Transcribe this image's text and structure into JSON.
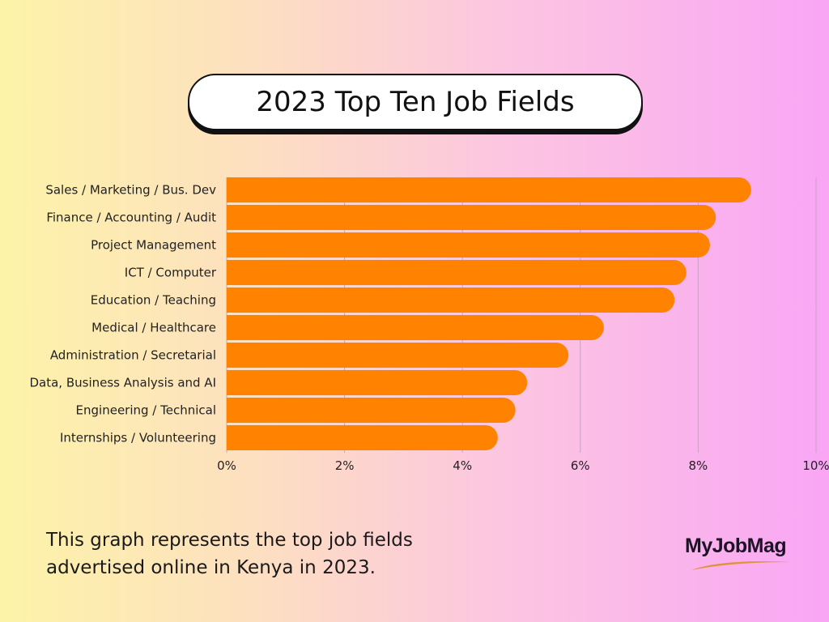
{
  "chart_data": {
    "type": "bar",
    "orientation": "horizontal",
    "title": "2023 Top Ten Job Fields",
    "categories": [
      "Sales / Marketing / Bus. Dev",
      "Finance / Accounting / Audit",
      "Project Management",
      "ICT / Computer",
      "Education / Teaching",
      "Medical / Healthcare",
      "Administration / Secretarial",
      "Data, Business Analysis and AI",
      "Engineering / Technical",
      "Internships / Volunteering"
    ],
    "values": [
      8.9,
      8.3,
      8.2,
      7.8,
      7.6,
      6.4,
      5.8,
      5.1,
      4.9,
      4.6
    ],
    "xlim": [
      0,
      10
    ],
    "xticks": [
      "0%",
      "2%",
      "4%",
      "6%",
      "8%",
      "10%"
    ],
    "grid": true,
    "bar_color": "#ff8200"
  },
  "caption": "This graph represents the top job fields advertised online in Kenya in 2023.",
  "logo": "MyJobMag"
}
